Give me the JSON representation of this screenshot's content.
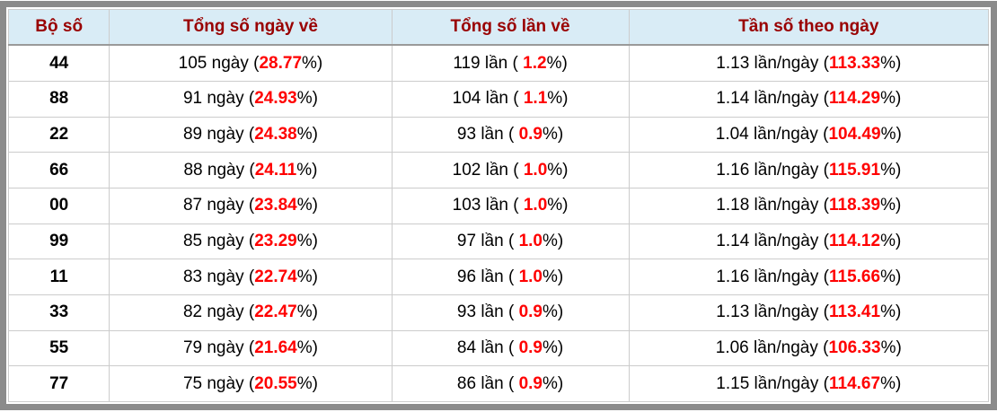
{
  "colors": {
    "frame_gray": "#8b8b8b",
    "header_bg": "#d9ecf6",
    "header_text": "#990000",
    "highlight_red": "#ff0000",
    "cell_border": "#cccccc",
    "body_text": "#000000"
  },
  "table": {
    "headers": [
      "Bộ số",
      "Tổng số ngày về",
      "Tổng số lần về",
      "Tần số theo ngày"
    ],
    "rows": [
      {
        "set": "44",
        "days_pre": "105 ngày (",
        "days_val": "28.77",
        "days_post": "%)",
        "times_pre": "119 lần ( ",
        "times_val": "1.2",
        "times_post": "%)",
        "freq_pre": "1.13 lần/ngày (",
        "freq_val": "113.33",
        "freq_post": "%)"
      },
      {
        "set": "88",
        "days_pre": "91 ngày (",
        "days_val": "24.93",
        "days_post": "%)",
        "times_pre": "104 lần ( ",
        "times_val": "1.1",
        "times_post": "%)",
        "freq_pre": "1.14 lần/ngày (",
        "freq_val": "114.29",
        "freq_post": "%)"
      },
      {
        "set": "22",
        "days_pre": "89 ngày (",
        "days_val": "24.38",
        "days_post": "%)",
        "times_pre": "93 lần ( ",
        "times_val": "0.9",
        "times_post": "%)",
        "freq_pre": "1.04 lần/ngày (",
        "freq_val": "104.49",
        "freq_post": "%)"
      },
      {
        "set": "66",
        "days_pre": "88 ngày (",
        "days_val": "24.11",
        "days_post": "%)",
        "times_pre": "102 lần ( ",
        "times_val": "1.0",
        "times_post": "%)",
        "freq_pre": "1.16 lần/ngày (",
        "freq_val": "115.91",
        "freq_post": "%)"
      },
      {
        "set": "00",
        "days_pre": "87 ngày (",
        "days_val": "23.84",
        "days_post": "%)",
        "times_pre": "103 lần ( ",
        "times_val": "1.0",
        "times_post": "%)",
        "freq_pre": "1.18 lần/ngày (",
        "freq_val": "118.39",
        "freq_post": "%)"
      },
      {
        "set": "99",
        "days_pre": "85 ngày (",
        "days_val": "23.29",
        "days_post": "%)",
        "times_pre": "97 lần ( ",
        "times_val": "1.0",
        "times_post": "%)",
        "freq_pre": "1.14 lần/ngày (",
        "freq_val": "114.12",
        "freq_post": "%)"
      },
      {
        "set": "11",
        "days_pre": "83 ngày (",
        "days_val": "22.74",
        "days_post": "%)",
        "times_pre": "96 lần ( ",
        "times_val": "1.0",
        "times_post": "%)",
        "freq_pre": "1.16 lần/ngày (",
        "freq_val": "115.66",
        "freq_post": "%)"
      },
      {
        "set": "33",
        "days_pre": "82 ngày (",
        "days_val": "22.47",
        "days_post": "%)",
        "times_pre": "93 lần ( ",
        "times_val": "0.9",
        "times_post": "%)",
        "freq_pre": "1.13 lần/ngày (",
        "freq_val": "113.41",
        "freq_post": "%)"
      },
      {
        "set": "55",
        "days_pre": "79 ngày (",
        "days_val": "21.64",
        "days_post": "%)",
        "times_pre": "84 lần ( ",
        "times_val": "0.9",
        "times_post": "%)",
        "freq_pre": "1.06 lần/ngày (",
        "freq_val": "106.33",
        "freq_post": "%)"
      },
      {
        "set": "77",
        "days_pre": "75 ngày (",
        "days_val": "20.55",
        "days_post": "%)",
        "times_pre": "86 lần ( ",
        "times_val": "0.9",
        "times_post": "%)",
        "freq_pre": "1.15 lần/ngày (",
        "freq_val": "114.67",
        "freq_post": "%)"
      }
    ]
  }
}
